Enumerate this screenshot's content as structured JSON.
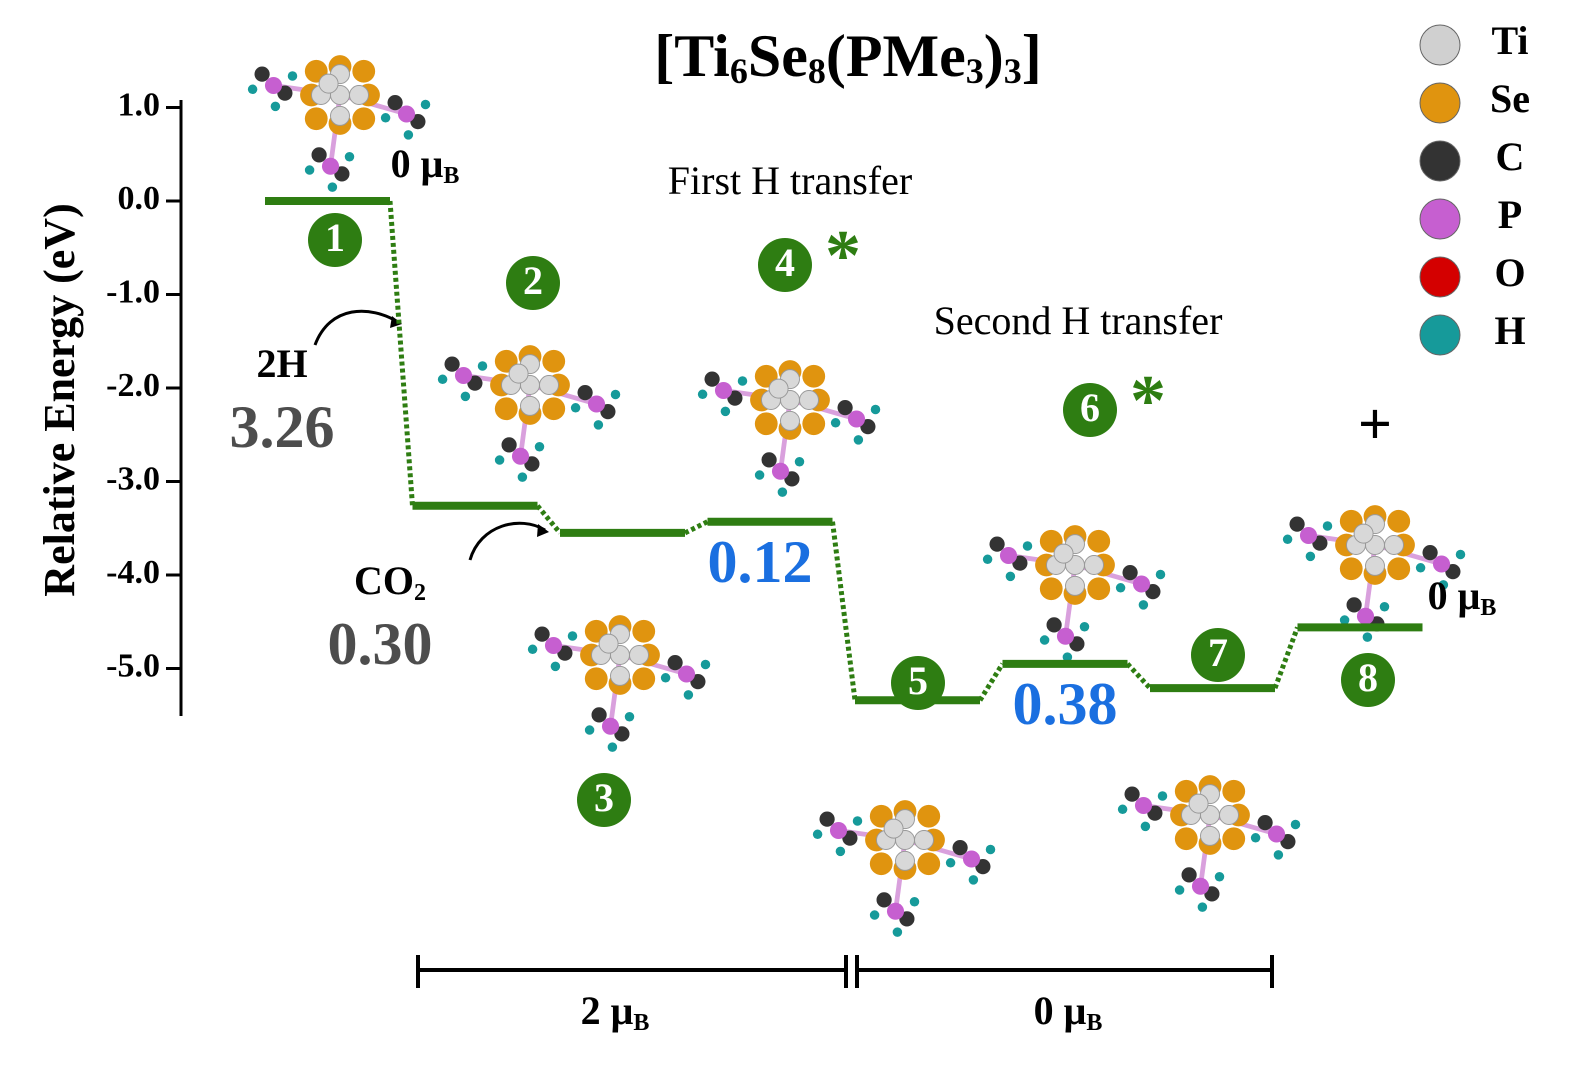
{
  "chart_data": {
    "type": "energy_profile",
    "title": "[Ti6Se8(PMe3)3]",
    "y_label": "Relative Energy (eV)",
    "ylim": [
      -5.5,
      1.1
    ],
    "yticks": [
      {
        "value": 1,
        "label": "1.0"
      },
      {
        "value": 0,
        "label": "0.0"
      },
      {
        "value": -1,
        "label": "-1.0"
      },
      {
        "value": -2,
        "label": "-2.0"
      },
      {
        "value": -3,
        "label": "-3.0"
      },
      {
        "value": -4,
        "label": "-4.0"
      },
      {
        "value": -5,
        "label": "-5.0"
      }
    ],
    "categories": [
      "1",
      "2",
      "3",
      "4",
      "5",
      "6",
      "7",
      "8"
    ],
    "values": [
      0,
      -3.26,
      -3.55,
      -3.43,
      -5.34,
      -4.95,
      -5.21,
      -4.56
    ],
    "color": "#2e7d12",
    "transition_states": [
      "4",
      "6"
    ],
    "ts_mark": "*",
    "barriers": [
      {
        "name": "2H",
        "value": 3.26,
        "color": "#4d4d4d"
      },
      {
        "name": "CO2",
        "value": 0.3,
        "label": "0.30",
        "color": "#4d4d4d"
      },
      {
        "value": 0.12,
        "label": "0.12",
        "color": "#1a6fe0"
      },
      {
        "value": 0.38,
        "label": "0.38",
        "color": "#1a6fe0"
      }
    ],
    "spin_labels": [
      "0 μB",
      "0 μB"
    ],
    "phases": [
      "First H transfer",
      "Second H transfer"
    ],
    "regions": [
      "2 μB",
      "0 μB"
    ],
    "product_sign": "+",
    "legend": [
      {
        "name": "Ti",
        "color": "#d0d0d0"
      },
      {
        "name": "Se",
        "color": "#e0940f"
      },
      {
        "name": "C",
        "color": "#333333"
      },
      {
        "name": "P",
        "color": "#c65fd0"
      },
      {
        "name": "O",
        "color": "#d40000"
      },
      {
        "name": "H",
        "color": "#169a9a"
      }
    ]
  }
}
